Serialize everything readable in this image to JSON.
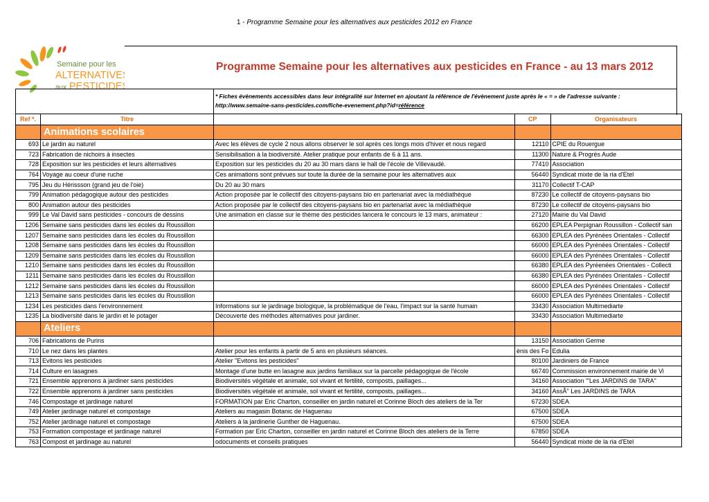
{
  "header": {
    "page": "1 -",
    "title": "Programme Semaine pour les alternatives aux pesticides 2012 en France"
  },
  "logo": {
    "line1": "Semaine pour les",
    "line2": "ALTERNATIVES",
    "line3a": "aux",
    "line3b": "PESTICIDES"
  },
  "title": "Programme Semaine pour les alternatives aux pesticides  en France - au 13 mars 2012",
  "note": {
    "line1": "* Fiches évènements accessibles dans leur intégralité sur Internet en ajoutant la référence de l'évènement juste après le « = » de l'adresse suivante :",
    "url": "http://www.semaine-sans-pesticides.com/fiche-evenement.php?id=",
    "link": "référence"
  },
  "columns": [
    "Ref *.",
    "Titre",
    null,
    "CP",
    "Organisateurs"
  ],
  "sections": [
    {
      "name": "Animations scolaires",
      "rows": [
        [
          693,
          "Le jardin au naturel",
          "Avec les élèves de cycle 2 nous allons observer le sol après ces longs mois d'hiver et nous regard",
          12110,
          "CPIE du Rouergue"
        ],
        [
          723,
          "Fabrication de nichoirs à  insectes",
          "Sensibilisation à  la biodiversité. Atelier pratique pour enfants de 6 à  11 ans.",
          11300,
          "Nature & Progrès Aude"
        ],
        [
          728,
          "Exposition sur les pesticides et leurs alternatives",
          "Exposition sur les pesticides du 20 au 30 mars dans le hall de l'école de Villevaudé.",
          77410,
          "Association"
        ],
        [
          764,
          "Voyage au coeur d'une ruche",
          "Ces animations sont prévues sur toute la durée de la semaine pour les alternatives aux",
          56440,
          "Syndicat mixte de la ria d'Etel"
        ],
        [
          795,
          "Jeu du Hérissson (grand jeu de l'oie)",
          "Du 20 au 30 mars",
          31170,
          "Collectif T-CAP"
        ],
        [
          799,
          "Animation pédagogique autour des pesticides",
          "Action proposée par le collectif des citoyens-paysans bio en partenariat avec la médiathèque",
          87230,
          "Le collectif de citoyens-paysans bio"
        ],
        [
          800,
          "Animation autour des pesticides",
          "Action proposée par le collectif des citoyens-paysans bio en partenariat avec la médiathèque",
          87230,
          "Le collectif de citoyens-paysans bio"
        ],
        [
          999,
          "Le Val David sans pesticides - concours de dessins",
          "Une animation en classe sur le thème des pesticides lancera le concours le 13 mars, animateur :",
          27120,
          "Mairie du Val David"
        ],
        [
          1206,
          "Semaine sans pesticides dans les écoles du Roussillon",
          null,
          66200,
          "EPLEA Perpignan Roussillon - Collectif san"
        ],
        [
          1207,
          "Semaine sans pesticides dans les écoles du Roussillon",
          null,
          66300,
          "EPLEA des Pyrénées Orientales - Collectif"
        ],
        [
          1208,
          "Semaine sans pesticides dans les écoles du Roussillon",
          null,
          66000,
          "EPLEA des Pyrénées Orientales - Collectif"
        ],
        [
          1209,
          "Semaine sans pesticides dans les écoles du Roussillon",
          null,
          66000,
          "EPLEA des Pyrénées Orientales - Collectif"
        ],
        [
          1210,
          "Semaine sans pesticides dans les écoles du Roussillon",
          null,
          66380,
          "EPLEA des Pyréenées Orientales - Collecti"
        ],
        [
          1211,
          "Semaine sans pesticides dans les écoles du Roussillon",
          null,
          66380,
          "EPLEA des Pyrénées Orientales - Collectif"
        ],
        [
          1212,
          "Semaine sans pesticides dans les écoles du Roussillon",
          null,
          66000,
          "EPLEA des Pyrénées Orientales - Collectif"
        ],
        [
          1213,
          "Semaine sans pesticides dans les écoles du Roussillon",
          null,
          66000,
          "EPLEA des Pyrénées Orientales - Collectif"
        ],
        [
          1234,
          "Les pesticides dans l'environnement",
          "Informations sur le jardinage biologique, la problématique de l'eau, l'impact sur la santé humain",
          33430,
          "Association Multimediarte"
        ],
        [
          1235,
          "La biodiversité dans le jardin et le potager",
          "Découverte des méthodes alternatives pour jardiner.",
          33430,
          "Association Multimediarte"
        ]
      ]
    },
    {
      "name": "Ateliers",
      "rows": [
        [
          706,
          "Fabrications de Purins",
          null,
          13150,
          "Association Germe"
        ],
        [
          710,
          "Le nez dans les plantes",
          "Atelier pour les enfants à  partir de 5 ans en plusieurs séances.",
          "ènis des Fo",
          "Edulia"
        ],
        [
          713,
          " Evitons les pesticides",
          "Atelier \"Evitons les pesticides\"",
          80100,
          "Jardiniers de France"
        ],
        [
          714,
          "Culture en lasagnes",
          "Montage d'une butte en lasagne aux jardins familiaux sur la parcelle pédagogique de l'école",
          66740,
          "Commission environnement mairie de Vi"
        ],
        [
          721,
          "Ensemble apprenons à  jardiner sans pesticides",
          "Biodiversités végétale et animale, sol vivant et fertilité, composts, paillages...",
          34160,
          "Association \"'Les JARDINS de TARA\""
        ],
        [
          722,
          "Ensemble apprenons à  jardiner sans pesticides",
          "Biodiversités végétale et animale, sol vivant et fertilité, composts, paillages...",
          34160,
          "AssÃ\" Les JARDINS de TARA"
        ],
        [
          746,
          "Compostage et jardinage naturel",
          "FORMATION par Eric Charton, conseiller en jardin naturel et Corinne Bloch des ateliers de la Ter",
          67230,
          "SDEA"
        ],
        [
          749,
          "Atelier jardinage naturel et compostage",
          "Ateliers au magasin Botanic de Haguenau",
          67500,
          "SDEA"
        ],
        [
          752,
          "Atelier jardinage naturel et compostage",
          "Ateliers à  la jardinerie Gunther de Haguenau.",
          67500,
          "SDEA"
        ],
        [
          753,
          "Formation compostage et jardinage naturel",
          "Formation par Eric Charton, conseiller en jardin naturel et Corinne Bloch des ateliers de la Terre",
          67850,
          "SDEA"
        ],
        [
          763,
          "Compost et jardinage au naturel",
          "odocuments et conseils pratiques",
          56440,
          "Syndicat mixte de la ria d'Etel"
        ]
      ]
    }
  ]
}
